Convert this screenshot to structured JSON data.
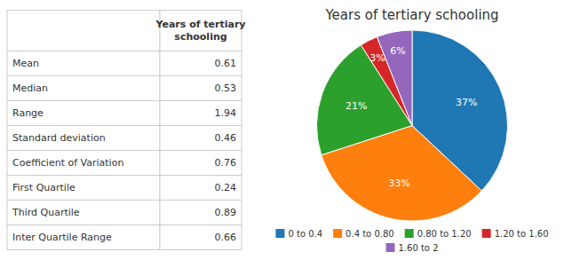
{
  "chart_data": [
    {
      "type": "table",
      "categories": [
        "Mean",
        "Median",
        "Range",
        "Standard deviation",
        "Coefficient of Variation",
        "First Quartile",
        "Third Quartile",
        "Inter Quartile Range"
      ],
      "series": [
        {
          "name": "Years of tertiary\nschooling",
          "values": [
            0.61,
            0.53,
            1.94,
            0.46,
            0.76,
            0.24,
            0.89,
            0.66
          ]
        }
      ]
    },
    {
      "type": "pie",
      "title": "Years of tertiary schooling",
      "categories": [
        "0 to 0.4",
        "0.4 to 0.80",
        "0.80 to 1.20",
        "1.20 to 1.60",
        "1.60 to 2"
      ],
      "values": [
        37,
        33,
        21,
        3,
        6
      ],
      "value_labels": [
        "37%",
        "33%",
        "21%",
        "3%",
        "6%"
      ],
      "data_labels": true,
      "legend": "bottom"
    }
  ]
}
